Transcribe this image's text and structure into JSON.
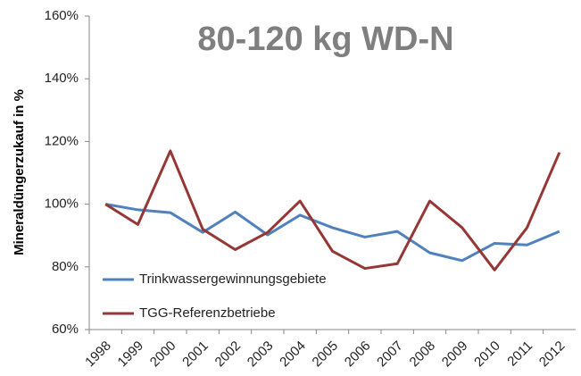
{
  "chart_data": {
    "type": "line",
    "title": "80-120 kg WD-N",
    "y_label": "Mineraldüngerzukauf in %",
    "categories": [
      "1998",
      "1999",
      "2000",
      "2001",
      "2002",
      "2003",
      "2004",
      "2005",
      "2006",
      "2007",
      "2008",
      "2009",
      "2010",
      "2011",
      "2012"
    ],
    "series": [
      {
        "name": "Trinkwassergewinnungsgebiete",
        "color": "#4f81bd",
        "values": [
          100,
          98.2,
          97.3,
          91,
          97.5,
          90.2,
          96.5,
          92.5,
          89.5,
          91.3,
          84.5,
          82,
          87.5,
          87,
          91.3
        ]
      },
      {
        "name": "TGG-Referenzbetriebe",
        "color": "#953735",
        "values": [
          100,
          93.5,
          117,
          92,
          85.5,
          91,
          101,
          85,
          79.5,
          81,
          101,
          92.5,
          79,
          92.5,
          116.5
        ]
      }
    ],
    "ylim": [
      60,
      160
    ],
    "yticks": [
      {
        "value": 60,
        "label": "60%"
      },
      {
        "value": 80,
        "label": "80%"
      },
      {
        "value": 100,
        "label": "100%"
      },
      {
        "value": 120,
        "label": "120%"
      },
      {
        "value": 140,
        "label": "140%"
      },
      {
        "value": 160,
        "label": "160%"
      }
    ],
    "grid": false,
    "legend": "bottom-left"
  }
}
